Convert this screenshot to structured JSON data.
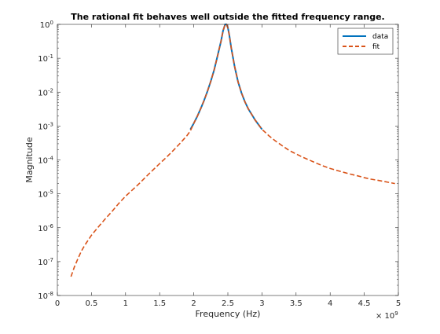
{
  "chart_data": {
    "type": "line",
    "title": "The rational fit behaves well outside the fitted frequency range.",
    "xlabel": "Frequency (Hz)",
    "ylabel": "Magnitude",
    "x_multiplier_base": "× 10",
    "x_multiplier_exp": "9",
    "xlim": [
      0,
      5
    ],
    "ylim": [
      1e-08,
      1
    ],
    "yscale": "log",
    "grid": false,
    "legend_position": "top-right",
    "x_ticks": [
      {
        "value": 0,
        "label": "0"
      },
      {
        "value": 0.5,
        "label": "0.5"
      },
      {
        "value": 1,
        "label": "1"
      },
      {
        "value": 1.5,
        "label": "1.5"
      },
      {
        "value": 2,
        "label": "2"
      },
      {
        "value": 2.5,
        "label": "2.5"
      },
      {
        "value": 3,
        "label": "3"
      },
      {
        "value": 3.5,
        "label": "3.5"
      },
      {
        "value": 4,
        "label": "4"
      },
      {
        "value": 4.5,
        "label": "4.5"
      },
      {
        "value": 5,
        "label": "5"
      }
    ],
    "y_ticks": [
      {
        "value": 1e-08,
        "base": "10",
        "exp": "-8"
      },
      {
        "value": 1e-07,
        "base": "10",
        "exp": "-7"
      },
      {
        "value": 1e-06,
        "base": "10",
        "exp": "-6"
      },
      {
        "value": 1e-05,
        "base": "10",
        "exp": "-5"
      },
      {
        "value": 0.0001,
        "base": "10",
        "exp": "-4"
      },
      {
        "value": 0.001,
        "base": "10",
        "exp": "-3"
      },
      {
        "value": 0.01,
        "base": "10",
        "exp": "-2"
      },
      {
        "value": 0.1,
        "base": "10",
        "exp": "-1"
      },
      {
        "value": 1,
        "base": "10",
        "exp": "0"
      }
    ],
    "series": [
      {
        "name": "data",
        "color": "#0072BD",
        "style": "solid",
        "x": [
          1.95,
          2.0,
          2.05,
          2.1,
          2.15,
          2.2,
          2.25,
          2.3,
          2.35,
          2.4,
          2.43,
          2.46,
          2.48,
          2.5,
          2.52,
          2.55,
          2.6,
          2.65,
          2.7,
          2.75,
          2.8,
          2.85,
          2.9,
          2.95,
          3.0
        ],
        "y": [
          0.00079,
          0.0012,
          0.0019,
          0.0032,
          0.0056,
          0.0105,
          0.021,
          0.046,
          0.12,
          0.32,
          0.65,
          1.0,
          1.0,
          0.8,
          0.5,
          0.2,
          0.056,
          0.02,
          0.0095,
          0.0052,
          0.0032,
          0.0022,
          0.0015,
          0.0011,
          0.0008
        ]
      },
      {
        "name": "fit",
        "color": "#D95319",
        "style": "dashed",
        "x": [
          0.2,
          0.25,
          0.3,
          0.35,
          0.4,
          0.5,
          0.6,
          0.7,
          0.8,
          0.9,
          1.0,
          1.1,
          1.2,
          1.3,
          1.4,
          1.5,
          1.6,
          1.7,
          1.8,
          1.9,
          1.95,
          2.0,
          2.05,
          2.1,
          2.15,
          2.2,
          2.25,
          2.3,
          2.35,
          2.4,
          2.43,
          2.46,
          2.48,
          2.5,
          2.52,
          2.55,
          2.6,
          2.65,
          2.7,
          2.75,
          2.8,
          2.85,
          2.9,
          2.95,
          3.0,
          3.1,
          3.2,
          3.3,
          3.4,
          3.5,
          3.6,
          3.7,
          3.8,
          3.9,
          4.0,
          4.1,
          4.2,
          4.3,
          4.4,
          4.5,
          4.6,
          4.7,
          4.8,
          4.9,
          4.95
        ],
        "y": [
          3.6e-08,
          7e-08,
          1.2e-07,
          2e-07,
          3e-07,
          6e-07,
          1.05e-06,
          1.8e-06,
          3e-06,
          5.2e-06,
          8.5e-06,
          1.3e-05,
          2e-05,
          3.2e-05,
          5e-05,
          7.8e-05,
          0.00012,
          0.00019,
          0.00031,
          0.00052,
          0.00072,
          0.0012,
          0.0019,
          0.0032,
          0.0056,
          0.0105,
          0.021,
          0.046,
          0.12,
          0.32,
          0.65,
          1.0,
          1.0,
          0.8,
          0.5,
          0.2,
          0.056,
          0.02,
          0.0095,
          0.0052,
          0.0032,
          0.0022,
          0.0015,
          0.0011,
          0.0008,
          0.00052,
          0.00036,
          0.00026,
          0.00019,
          0.00015,
          0.00012,
          9.8e-05,
          8e-05,
          6.6e-05,
          5.6e-05,
          4.9e-05,
          4.3e-05,
          3.8e-05,
          3.4e-05,
          3e-05,
          2.7e-05,
          2.5e-05,
          2.3e-05,
          2.1e-05,
          2e-05
        ]
      }
    ]
  }
}
